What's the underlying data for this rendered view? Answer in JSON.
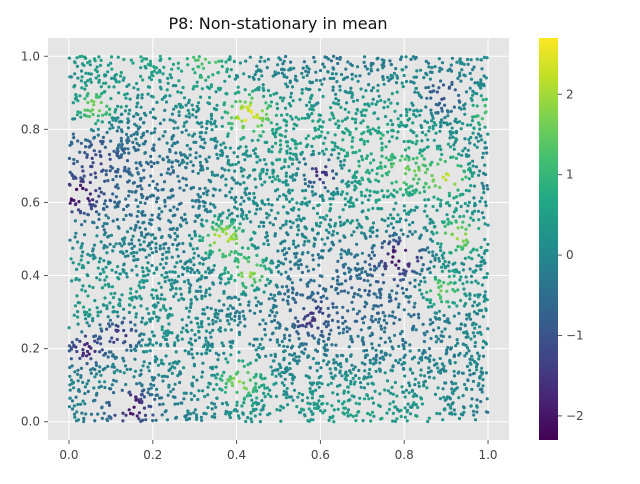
{
  "chart_data": {
    "type": "scatter",
    "title": "P8: Non-stationary in mean",
    "xlabel": "",
    "ylabel": "",
    "xlim": [
      -0.05,
      1.05
    ],
    "ylim": [
      -0.05,
      1.05
    ],
    "x_ticks": [
      "0.0",
      "0.2",
      "0.4",
      "0.6",
      "0.8",
      "1.0"
    ],
    "y_ticks": [
      "0.0",
      "0.2",
      "0.4",
      "0.6",
      "0.8",
      "1.0"
    ],
    "grid": true,
    "style": "ggplot",
    "colorbar": {
      "colormap": "viridis",
      "range": [
        -2.3,
        2.7
      ],
      "ticks": [
        "−2",
        "−1",
        "0",
        "1",
        "2"
      ]
    },
    "n_points": 5000,
    "field_hotspots": [
      {
        "x": 0.43,
        "y": 0.84,
        "value": 2.6
      },
      {
        "x": 0.37,
        "y": 0.5,
        "value": 2.3
      },
      {
        "x": 0.9,
        "y": 0.67,
        "value": 2.3
      },
      {
        "x": 0.93,
        "y": 0.51,
        "value": 1.9
      },
      {
        "x": 0.81,
        "y": 0.68,
        "value": 1.6
      },
      {
        "x": 0.06,
        "y": 0.86,
        "value": 1.6
      },
      {
        "x": 0.43,
        "y": 0.41,
        "value": 1.8
      },
      {
        "x": 0.41,
        "y": 0.11,
        "value": 1.8
      },
      {
        "x": 0.89,
        "y": 0.36,
        "value": 1.6
      },
      {
        "x": 0.33,
        "y": 0.98,
        "value": 1.4
      },
      {
        "x": 0.99,
        "y": 0.85,
        "value": 1.3
      }
    ],
    "field_coldspots": [
      {
        "x": 0.02,
        "y": 0.62,
        "value": -2.3
      },
      {
        "x": 0.79,
        "y": 0.45,
        "value": -2.2
      },
      {
        "x": 0.15,
        "y": 0.04,
        "value": -2.1
      },
      {
        "x": 0.04,
        "y": 0.2,
        "value": -1.8
      },
      {
        "x": 0.6,
        "y": 0.68,
        "value": -1.6
      },
      {
        "x": 0.12,
        "y": 0.24,
        "value": -1.5
      },
      {
        "x": 0.58,
        "y": 0.28,
        "value": -1.5
      },
      {
        "x": 0.9,
        "y": 0.89,
        "value": -1.2
      },
      {
        "x": 0.07,
        "y": 0.71,
        "value": -1.3
      }
    ]
  }
}
